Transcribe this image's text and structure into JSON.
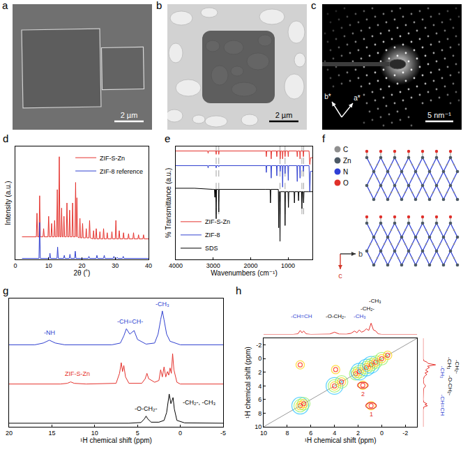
{
  "chart_data": [
    {
      "panel": "d",
      "type": "line",
      "xlabel": "2θ (˚)",
      "ylabel": "Intensity (a.u.)",
      "xlim": [
        0,
        40
      ],
      "xticks": [
        0,
        10,
        20,
        30,
        40
      ],
      "ylim": [
        0,
        1.1
      ],
      "tick_labels": "x",
      "legend": "top right",
      "series": [
        {
          "name": "ZIF-S-Zn",
          "color": "#e5322d",
          "x": [
            2,
            6.3,
            6.5,
            6.7,
            7.1,
            7.3,
            7.5,
            8.3,
            8.5,
            8.7,
            9.8,
            10.0,
            10.2,
            10.7,
            10.9,
            11.1,
            11.6,
            11.8,
            12.0,
            12.4,
            12.6,
            12.8,
            13.0,
            13.2,
            13.4,
            13.7,
            13.9,
            14.1,
            14.4,
            14.6,
            14.8,
            15.3,
            15.5,
            15.7,
            16.1,
            16.3,
            16.5,
            17.0,
            17.2,
            17.4,
            17.9,
            18.1,
            18.3,
            18.5,
            18.7,
            19.2,
            19.4,
            19.6,
            20.0,
            20.2,
            20.4,
            21.1,
            21.3,
            21.5,
            22.1,
            22.3,
            22.5,
            23.3,
            23.5,
            23.7,
            24.1,
            24.3,
            24.5,
            25.2,
            25.4,
            25.6,
            26.3,
            26.5,
            26.7,
            27.4,
            27.6,
            27.8,
            28.8,
            29.0,
            29.2,
            30.0,
            30.2,
            30.4,
            31.0,
            31.2,
            31.4,
            32.3,
            32.5,
            32.7,
            33.8,
            34.0,
            34.2,
            35.3,
            35.5,
            35.7,
            36.8,
            37.0,
            37.2,
            38.3,
            38.5,
            38.7,
            40
          ],
          "values": [
            0.22,
            0.22,
            0.45,
            0.22,
            0.22,
            0.62,
            0.22,
            0.22,
            0.3,
            0.22,
            0.22,
            0.42,
            0.22,
            0.22,
            0.35,
            0.22,
            0.22,
            0.38,
            0.22,
            0.22,
            0.68,
            0.22,
            0.22,
            1.0,
            0.22,
            0.22,
            0.5,
            0.22,
            0.22,
            0.42,
            0.22,
            0.22,
            0.55,
            0.22,
            0.22,
            0.48,
            0.22,
            0.22,
            0.55,
            0.22,
            0.22,
            0.75,
            0.22,
            0.6,
            0.22,
            0.21,
            0.4,
            0.21,
            0.21,
            0.35,
            0.21,
            0.21,
            0.3,
            0.21,
            0.21,
            0.38,
            0.21,
            0.2,
            0.28,
            0.2,
            0.2,
            0.3,
            0.2,
            0.2,
            0.27,
            0.2,
            0.2,
            0.3,
            0.2,
            0.2,
            0.26,
            0.2,
            0.2,
            0.27,
            0.2,
            0.2,
            0.38,
            0.2,
            0.2,
            0.28,
            0.2,
            0.2,
            0.26,
            0.2,
            0.2,
            0.25,
            0.2,
            0.2,
            0.26,
            0.2,
            0.2,
            0.24,
            0.2,
            0.2,
            0.24,
            0.2,
            0.2
          ]
        },
        {
          "name": "ZIF-8 reference",
          "color": "#3040d0",
          "x": [
            2,
            7.1,
            7.3,
            7.5,
            10.2,
            10.4,
            10.6,
            12.5,
            12.7,
            12.9,
            14.5,
            14.7,
            14.9,
            16.2,
            16.4,
            16.6,
            17.8,
            18.0,
            18.2,
            21.9,
            22.1,
            22.3,
            24.3,
            24.5,
            24.7,
            26.5,
            26.7,
            26.9,
            29.4,
            29.6,
            29.8,
            30.4,
            30.6,
            30.8,
            32.2,
            32.4,
            32.6,
            40
          ],
          "values": [
            0.01,
            0.01,
            0.36,
            0.01,
            0.01,
            0.06,
            0.01,
            0.01,
            0.12,
            0.01,
            0.01,
            0.04,
            0.01,
            0.01,
            0.05,
            0.01,
            0.01,
            0.08,
            0.01,
            0.01,
            0.03,
            0.01,
            0.01,
            0.04,
            0.01,
            0.01,
            0.04,
            0.01,
            0.01,
            0.03,
            0.01,
            0.01,
            0.02,
            0.01,
            0.01,
            0.03,
            0.01,
            0.01
          ]
        }
      ]
    },
    {
      "panel": "e",
      "type": "line",
      "xlabel": "Wavenumbers (cm⁻¹)",
      "ylabel": "% Transmittance (a.u.)",
      "xlim": [
        4000,
        350
      ],
      "xticks": [
        4000,
        3000,
        2000,
        1000
      ],
      "ylim": [
        0,
        1
      ],
      "tick_labels": "x",
      "legend": "bottom left",
      "reference_lines": [
        2920,
        2850,
        1215,
        1080,
        630,
        585
      ],
      "series": [
        {
          "name": "ZIF-S-Zn",
          "color": "#e5322d",
          "x": [
            4000,
            3500,
            3145,
            3135,
            3125,
            2930,
            2920,
            2910,
            2860,
            2850,
            2840,
            1600,
            1590,
            1580,
            1570,
            1460,
            1450,
            1440,
            1310,
            1300,
            1290,
            1220,
            1210,
            1200,
            1155,
            1145,
            1135,
            1090,
            1080,
            1070,
            1005,
            995,
            985,
            765,
            755,
            745,
            690,
            680,
            670,
            600,
            590,
            580,
            440,
            420,
            400,
            350
          ],
          "values": [
            0.96,
            0.96,
            0.96,
            0.94,
            0.96,
            0.96,
            0.93,
            0.96,
            0.96,
            0.93,
            0.96,
            0.96,
            0.96,
            0.91,
            0.96,
            0.96,
            0.89,
            0.96,
            0.96,
            0.91,
            0.96,
            0.96,
            0.89,
            0.96,
            0.96,
            0.89,
            0.96,
            0.96,
            0.91,
            0.96,
            0.96,
            0.91,
            0.96,
            0.96,
            0.91,
            0.96,
            0.96,
            0.89,
            0.96,
            0.96,
            0.91,
            0.96,
            0.96,
            0.84,
            0.9,
            0.9
          ]
        },
        {
          "name": "ZIF-8",
          "color": "#3040d0",
          "x": [
            4000,
            3500,
            3145,
            3135,
            3125,
            2930,
            2920,
            2910,
            2860,
            2850,
            2840,
            1600,
            1590,
            1580,
            1570,
            1460,
            1450,
            1440,
            1310,
            1300,
            1290,
            1220,
            1210,
            1200,
            1155,
            1145,
            1135,
            1090,
            1080,
            1070,
            1005,
            995,
            985,
            765,
            755,
            745,
            690,
            680,
            670,
            600,
            590,
            580,
            440,
            420,
            400,
            350
          ],
          "values": [
            0.83,
            0.83,
            0.83,
            0.81,
            0.83,
            0.83,
            0.81,
            0.83,
            0.83,
            0.82,
            0.83,
            0.83,
            0.83,
            0.77,
            0.83,
            0.83,
            0.72,
            0.83,
            0.83,
            0.74,
            0.83,
            0.83,
            0.78,
            0.83,
            0.83,
            0.64,
            0.83,
            0.83,
            0.76,
            0.83,
            0.83,
            0.7,
            0.83,
            0.83,
            0.69,
            0.83,
            0.83,
            0.72,
            0.83,
            0.83,
            0.78,
            0.83,
            0.83,
            0.6,
            0.78,
            0.78
          ]
        },
        {
          "name": "SDS",
          "color": "#000000",
          "x": [
            4000,
            3500,
            3000,
            2965,
            2955,
            2945,
            2930,
            2920,
            2910,
            2860,
            2850,
            2840,
            1600,
            1480,
            1470,
            1460,
            1260,
            1250,
            1240,
            1225,
            1215,
            1205,
            1090,
            1080,
            1070,
            1000,
            990,
            980,
            840,
            830,
            820,
            730,
            720,
            710,
            640,
            630,
            620,
            595,
            585,
            575,
            450,
            350
          ],
          "values": [
            0.63,
            0.63,
            0.62,
            0.62,
            0.55,
            0.62,
            0.62,
            0.36,
            0.62,
            0.62,
            0.42,
            0.62,
            0.62,
            0.62,
            0.5,
            0.62,
            0.62,
            0.28,
            0.6,
            0.6,
            0.16,
            0.6,
            0.6,
            0.3,
            0.6,
            0.6,
            0.46,
            0.6,
            0.6,
            0.5,
            0.6,
            0.6,
            0.52,
            0.6,
            0.6,
            0.45,
            0.6,
            0.6,
            0.5,
            0.6,
            0.6,
            0.6
          ]
        }
      ]
    },
    {
      "panel": "g",
      "type": "line",
      "xlabel": "¹H chemical shift (ppm)",
      "xlim": [
        20,
        -5
      ],
      "xticks": [
        20,
        15,
        10,
        5,
        0,
        -5
      ],
      "ylim": [
        -0.1,
        3.5
      ],
      "tick_labels": "x",
      "series": [
        {
          "color": "#3040d0",
          "x": [
            20,
            17,
            16,
            15.3,
            14.6,
            13.5,
            8,
            7,
            6.6,
            6.3,
            5.9,
            5.4,
            5.0,
            4.0,
            3.0,
            2.6,
            2.3,
            2.1,
            1.9,
            1.6,
            1.2,
            0,
            -5
          ],
          "values": [
            2.2,
            2.2,
            2.25,
            2.33,
            2.25,
            2.2,
            2.2,
            2.25,
            2.45,
            2.65,
            2.5,
            2.6,
            2.35,
            2.22,
            2.25,
            2.5,
            2.9,
            3.15,
            2.9,
            2.5,
            2.3,
            2.2,
            2.2
          ]
        },
        {
          "color": "#e5322d",
          "x": [
            20,
            14,
            13.2,
            12.8,
            12.4,
            11,
            7.5,
            7.1,
            6.9,
            6.75,
            6.6,
            6.4,
            6.0,
            4.5,
            4.1,
            3.9,
            3.7,
            3.0,
            2.5,
            2.3,
            2.1,
            1.9,
            1.7,
            1.5,
            1.35,
            1.2,
            1.05,
            0.9,
            0.75,
            0.6,
            0.4,
            0,
            -5
          ],
          "values": [
            1.1,
            1.1,
            1.12,
            1.16,
            1.12,
            1.1,
            1.12,
            1.4,
            1.7,
            1.45,
            1.62,
            1.3,
            1.12,
            1.12,
            1.25,
            1.4,
            1.25,
            1.15,
            1.2,
            1.5,
            1.3,
            1.58,
            1.3,
            1.45,
            1.35,
            1.55,
            1.4,
            1.95,
            1.5,
            1.35,
            1.15,
            1.1,
            1.1
          ]
        },
        {
          "color": "#000000",
          "x": [
            20,
            6,
            4.6,
            4.2,
            4.0,
            3.8,
            3.4,
            2.5,
            1.9,
            1.6,
            1.3,
            1.1,
            0.95,
            0.85,
            0.7,
            0.4,
            -0.5,
            -5
          ],
          "values": [
            0,
            0,
            0.02,
            0.12,
            0.2,
            0.12,
            0.03,
            0.03,
            0.08,
            0.3,
            0.82,
            0.55,
            0.65,
            0.72,
            0.4,
            0.08,
            0.01,
            0
          ]
        }
      ],
      "annotations": [
        {
          "text": "-NH",
          "x": 15.3,
          "y": 2.4,
          "color": "#2b3fd1"
        },
        {
          "text": "-CH=CH-",
          "x": 5.9,
          "y": 2.72,
          "color": "#2b3fd1"
        },
        {
          "text": "-CH₃",
          "x": 2.1,
          "y": 3.2,
          "color": "#2b3fd1"
        },
        {
          "text": "ZIF-S-Zn",
          "x": 12,
          "y": 1.25,
          "color": "#e5322d"
        },
        {
          "text": "-O-CH₂-",
          "x": 4.0,
          "y": 0.28,
          "color": "#000000"
        },
        {
          "text": "-CH₂-, -CH₃",
          "x": -2.2,
          "y": 0.45,
          "color": "#000000"
        }
      ]
    },
    {
      "panel": "h",
      "type": "contour",
      "xlabel": "¹H chemical shift (ppm)",
      "ylabel": "¹H chemical shift (ppm)",
      "xlim": [
        10,
        -3
      ],
      "xticks": [
        10,
        8,
        6,
        4,
        2,
        0,
        -2
      ],
      "ylim": [
        10,
        -3
      ],
      "yticks": [
        -2,
        0,
        2,
        4,
        6,
        8,
        10
      ],
      "peaks": [
        {
          "x": 6.9,
          "y": 6.9,
          "intensity": 3
        },
        {
          "x": 6.6,
          "y": 6.6,
          "intensity": 2
        },
        {
          "x": 4.0,
          "y": 4.0,
          "intensity": 3
        },
        {
          "x": 3.4,
          "y": 3.4,
          "intensity": 2
        },
        {
          "x": 2.2,
          "y": 2.2,
          "intensity": 2
        },
        {
          "x": 1.9,
          "y": 1.9,
          "intensity": 3
        },
        {
          "x": 1.3,
          "y": 1.3,
          "intensity": 3
        },
        {
          "x": 0.9,
          "y": 0.9,
          "intensity": 3
        },
        {
          "x": 0.5,
          "y": 0.5,
          "intensity": 2
        },
        {
          "x": 0.0,
          "y": 0.0,
          "intensity": 2
        },
        {
          "x": -0.5,
          "y": -0.5,
          "intensity": 1
        },
        {
          "x": 6.9,
          "y": 0.9,
          "intensity": 1
        },
        {
          "x": 0.9,
          "y": 6.9,
          "intensity": 1
        },
        {
          "x": 1.6,
          "y": 3.9,
          "intensity": 1
        },
        {
          "x": 3.9,
          "y": 1.6,
          "intensity": 1
        }
      ],
      "circles": [
        {
          "label": "1",
          "x": 0.9,
          "y": 6.9,
          "color": "#e5322d"
        },
        {
          "label": "2",
          "x": 1.6,
          "y": 3.9,
          "color": "#e5322d"
        }
      ],
      "projection": {
        "color": "#e5322d",
        "lim": [
          0,
          3.2
        ],
        "x": [
          10,
          7.5,
          7.1,
          6.9,
          6.75,
          6.6,
          6.4,
          6,
          4.4,
          4.0,
          3.8,
          3.6,
          3.0,
          2.6,
          2.3,
          2.1,
          1.9,
          1.7,
          1.5,
          1.3,
          1.1,
          0.9,
          0.7,
          0.5,
          0.3,
          0,
          -3
        ],
        "values": [
          0,
          0,
          0.05,
          0.35,
          0.15,
          0.3,
          0.05,
          0,
          0.03,
          0.2,
          0.12,
          0.03,
          0.02,
          0.1,
          0.3,
          0.15,
          0.4,
          0.2,
          0.3,
          0.5,
          0.35,
          1.0,
          0.4,
          0.3,
          0.05,
          0,
          0
        ],
        "labels": [
          {
            "text": "-CH=CH",
            "x": 6.8,
            "color": "#2b3fd1"
          },
          {
            "text": "-O-CH₂-",
            "x": 3.9,
            "color": "#000000"
          },
          {
            "text": "-CH₃",
            "x": 1.9,
            "color": "#2b3fd1"
          },
          {
            "text": "-CH₂-",
            "x": 1.2,
            "color": "#000000"
          },
          {
            "text": "-CH₃",
            "x": 0.6,
            "color": "#000000"
          }
        ]
      }
    }
  ],
  "images": [
    {
      "panel": "a",
      "type": "image",
      "scale_bar": "2 µm"
    },
    {
      "panel": "b",
      "type": "image",
      "scale_bar": "2 µm"
    },
    {
      "panel": "c",
      "type": "image",
      "scale_bar": "5 nm⁻¹",
      "axes": [
        "b*",
        "a*"
      ]
    },
    {
      "panel": "f",
      "type": "diagram",
      "atoms": [
        {
          "name": "C",
          "color": "#8f8f8f"
        },
        {
          "name": "Zn",
          "color": "#4d5a66"
        },
        {
          "name": "N",
          "color": "#2f3fd6"
        },
        {
          "name": "O",
          "color": "#e0302a"
        }
      ],
      "axes": [
        "c",
        "b"
      ]
    }
  ]
}
